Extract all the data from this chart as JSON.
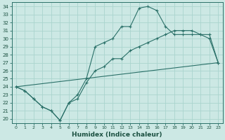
{
  "title": "",
  "xlabel": "Humidex (Indice chaleur)",
  "bg_color": "#cce8e4",
  "grid_color": "#aad4ce",
  "line_color": "#2a7068",
  "xlim": [
    -0.5,
    23.5
  ],
  "ylim": [
    19.5,
    34.5
  ],
  "yticks": [
    20,
    21,
    22,
    23,
    24,
    25,
    26,
    27,
    28,
    29,
    30,
    31,
    32,
    33,
    34
  ],
  "xticks": [
    0,
    1,
    2,
    3,
    4,
    5,
    6,
    7,
    8,
    9,
    10,
    11,
    12,
    13,
    14,
    15,
    16,
    17,
    18,
    19,
    20,
    21,
    22,
    23
  ],
  "line1_x": [
    0,
    1,
    2,
    3,
    4,
    5,
    6,
    7,
    8,
    9,
    10,
    11,
    12,
    13,
    14,
    15,
    16,
    17,
    18,
    19,
    20,
    21,
    22,
    23
  ],
  "line1_y": [
    24.0,
    23.5,
    22.5,
    21.5,
    21.0,
    19.8,
    22.0,
    23.0,
    25.0,
    29.0,
    29.5,
    30.0,
    31.5,
    31.5,
    33.8,
    34.0,
    33.5,
    31.5,
    30.5,
    30.5,
    30.5,
    30.5,
    30.5,
    27.0
  ],
  "line2_x": [
    0,
    1,
    2,
    3,
    4,
    5,
    6,
    7,
    8,
    9,
    10,
    11,
    12,
    13,
    14,
    15,
    16,
    17,
    18,
    19,
    20,
    21,
    22,
    23
  ],
  "line2_y": [
    24.0,
    23.5,
    22.5,
    21.5,
    21.0,
    19.8,
    22.0,
    22.5,
    24.5,
    26.0,
    26.5,
    27.5,
    27.5,
    28.5,
    29.0,
    29.5,
    30.0,
    30.5,
    31.0,
    31.0,
    31.0,
    30.5,
    30.0,
    27.0
  ],
  "line3_x": [
    0,
    23
  ],
  "line3_y": [
    24.0,
    27.0
  ]
}
